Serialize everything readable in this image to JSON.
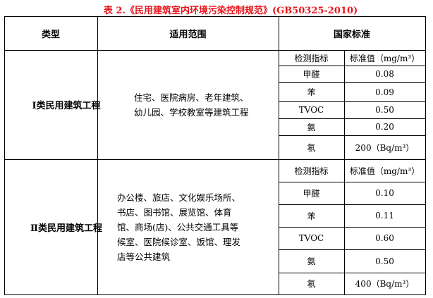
{
  "title": "表 2.《民用建筑室内环境污染控制规范》(GB50325-2010)",
  "headers": {
    "type": "类型",
    "scope": "适用范围",
    "standard": "国家标准"
  },
  "groups": [
    {
      "type": "Ⅰ类民用建筑工程",
      "scope": "住宅、医院病房、老年建筑、幼儿园、学校教室等建筑工程",
      "sub_header": {
        "indicator": "检测指标",
        "value": "标准值（mg/m³）"
      },
      "rows": [
        {
          "indicator": "甲醛",
          "value": "0.08"
        },
        {
          "indicator": "苯",
          "value": "0.09"
        },
        {
          "indicator": "TVOC",
          "value": "0.50"
        },
        {
          "indicator": "氨",
          "value": "0.20"
        },
        {
          "indicator": "氡",
          "value": "200（Bq/m³）"
        }
      ]
    },
    {
      "type": "Ⅱ类民用建筑工程",
      "scope": "办公楼、旅店、文化娱乐场所、书店、图书馆、展览馆、体育馆、商场(店)、公共交通工具等候室、医院候诊室、饭馆、理发店等公共建筑",
      "sub_header": {
        "indicator": "检测指标",
        "value": "标准值（mg/m³）"
      },
      "rows": [
        {
          "indicator": "甲醛",
          "value": "0.10"
        },
        {
          "indicator": "苯",
          "value": "0.11"
        },
        {
          "indicator": "TVOC",
          "value": "0.60"
        },
        {
          "indicator": "氨",
          "value": "0.50"
        },
        {
          "indicator": "氡",
          "value": "400（Bq/m³）"
        }
      ]
    }
  ]
}
